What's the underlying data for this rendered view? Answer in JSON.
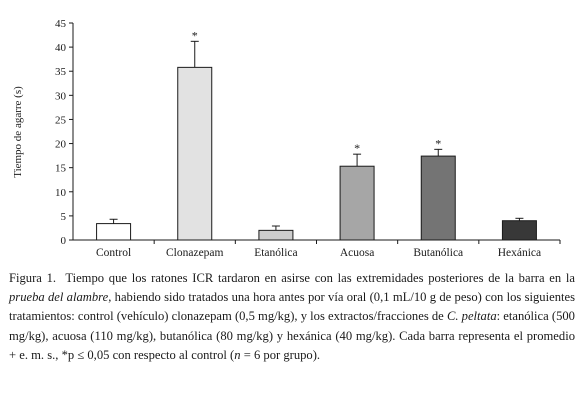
{
  "chart_data": {
    "type": "bar",
    "title": "",
    "xlabel": "",
    "ylabel": "Tiempo de agarre (s)",
    "ylim": [
      0,
      45
    ],
    "yticks": [
      0,
      5,
      10,
      15,
      20,
      25,
      30,
      35,
      40,
      45
    ],
    "grid": false,
    "legend": "none",
    "categories": [
      "Control",
      "Clonazepam",
      "Etanólica",
      "Acuosa",
      "Butanólica",
      "Hexánica"
    ],
    "values": [
      3.4,
      35.8,
      2.0,
      15.3,
      17.4,
      4.0
    ],
    "errors": [
      0.9,
      5.4,
      0.9,
      2.5,
      1.4,
      0.5
    ],
    "significance": [
      "",
      "*",
      "",
      "*",
      "*",
      ""
    ],
    "bar_colors": [
      "#ffffff",
      "#e2e2e2",
      "#cdcdcd",
      "#a6a6a6",
      "#747474",
      "#383838"
    ]
  },
  "caption": {
    "label": "Figura 1.",
    "part1": "Tiempo que los ratones ICR tardaron en asirse con las extremidades posteriores de la barra en la ",
    "italic1": "prueba del alambre",
    "part2": ", habiendo sido tratados una hora antes por vía oral (0,1 mL/10 g de peso) con los siguientes tratamientos: control (vehículo) clonazepam (0,5 mg/kg), y los extractos/fracciones de ",
    "italic2": "C. peltata",
    "part3": ": etanólica (500 mg/kg), acuosa (110 mg/kg), butanólica (80 mg/kg) y hexánica (40 mg/kg). Cada barra representa el promedio + e. m. s., *p ≤ 0,05 con respecto al control (",
    "italic3": "n",
    "part4": " = 6 por grupo)."
  }
}
